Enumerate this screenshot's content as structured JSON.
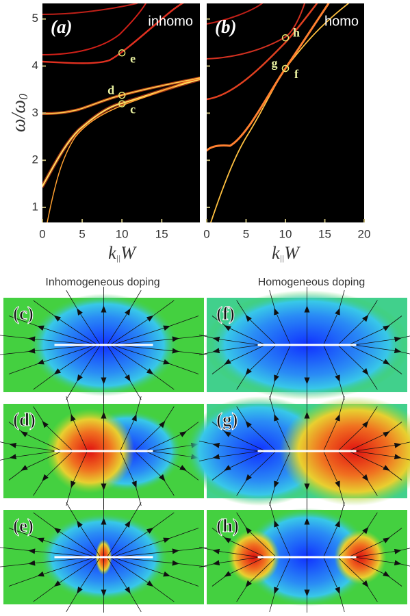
{
  "panel_a": {
    "label": "(a)",
    "tag": "inhomo",
    "xlim": [
      0,
      19.8
    ],
    "ylim": [
      0.68,
      5.33
    ],
    "xticks": [
      0,
      5,
      10,
      15
    ],
    "yticks": [
      1,
      2,
      3,
      4,
      5
    ],
    "points": [
      {
        "x": 10,
        "y": 4.28,
        "label": "e"
      },
      {
        "x": 10,
        "y": 3.38,
        "label": "d"
      },
      {
        "x": 10,
        "y": 3.2,
        "label": "c"
      }
    ]
  },
  "panel_b": {
    "label": "(b)",
    "tag": "homo",
    "xlim": [
      0,
      20
    ],
    "ylim": [
      0.68,
      5.33
    ],
    "xticks": [
      0,
      5,
      10,
      15,
      20
    ],
    "points": [
      {
        "x": 10,
        "y": 4.6,
        "label": "h"
      },
      {
        "x": 10,
        "y": 3.95,
        "label": "g"
      },
      {
        "x": 10,
        "y": 3.95,
        "label": "f"
      }
    ]
  },
  "ylabel": [
    "ω/ω",
    "0"
  ],
  "xlabel": [
    "k",
    "||",
    "W"
  ],
  "titles": [
    "Inhomogeneous doping",
    "Homogeneous doping"
  ],
  "maps": [
    "(c)",
    "(f)",
    "(d)",
    "(g)",
    "(e)",
    "(h)"
  ]
}
